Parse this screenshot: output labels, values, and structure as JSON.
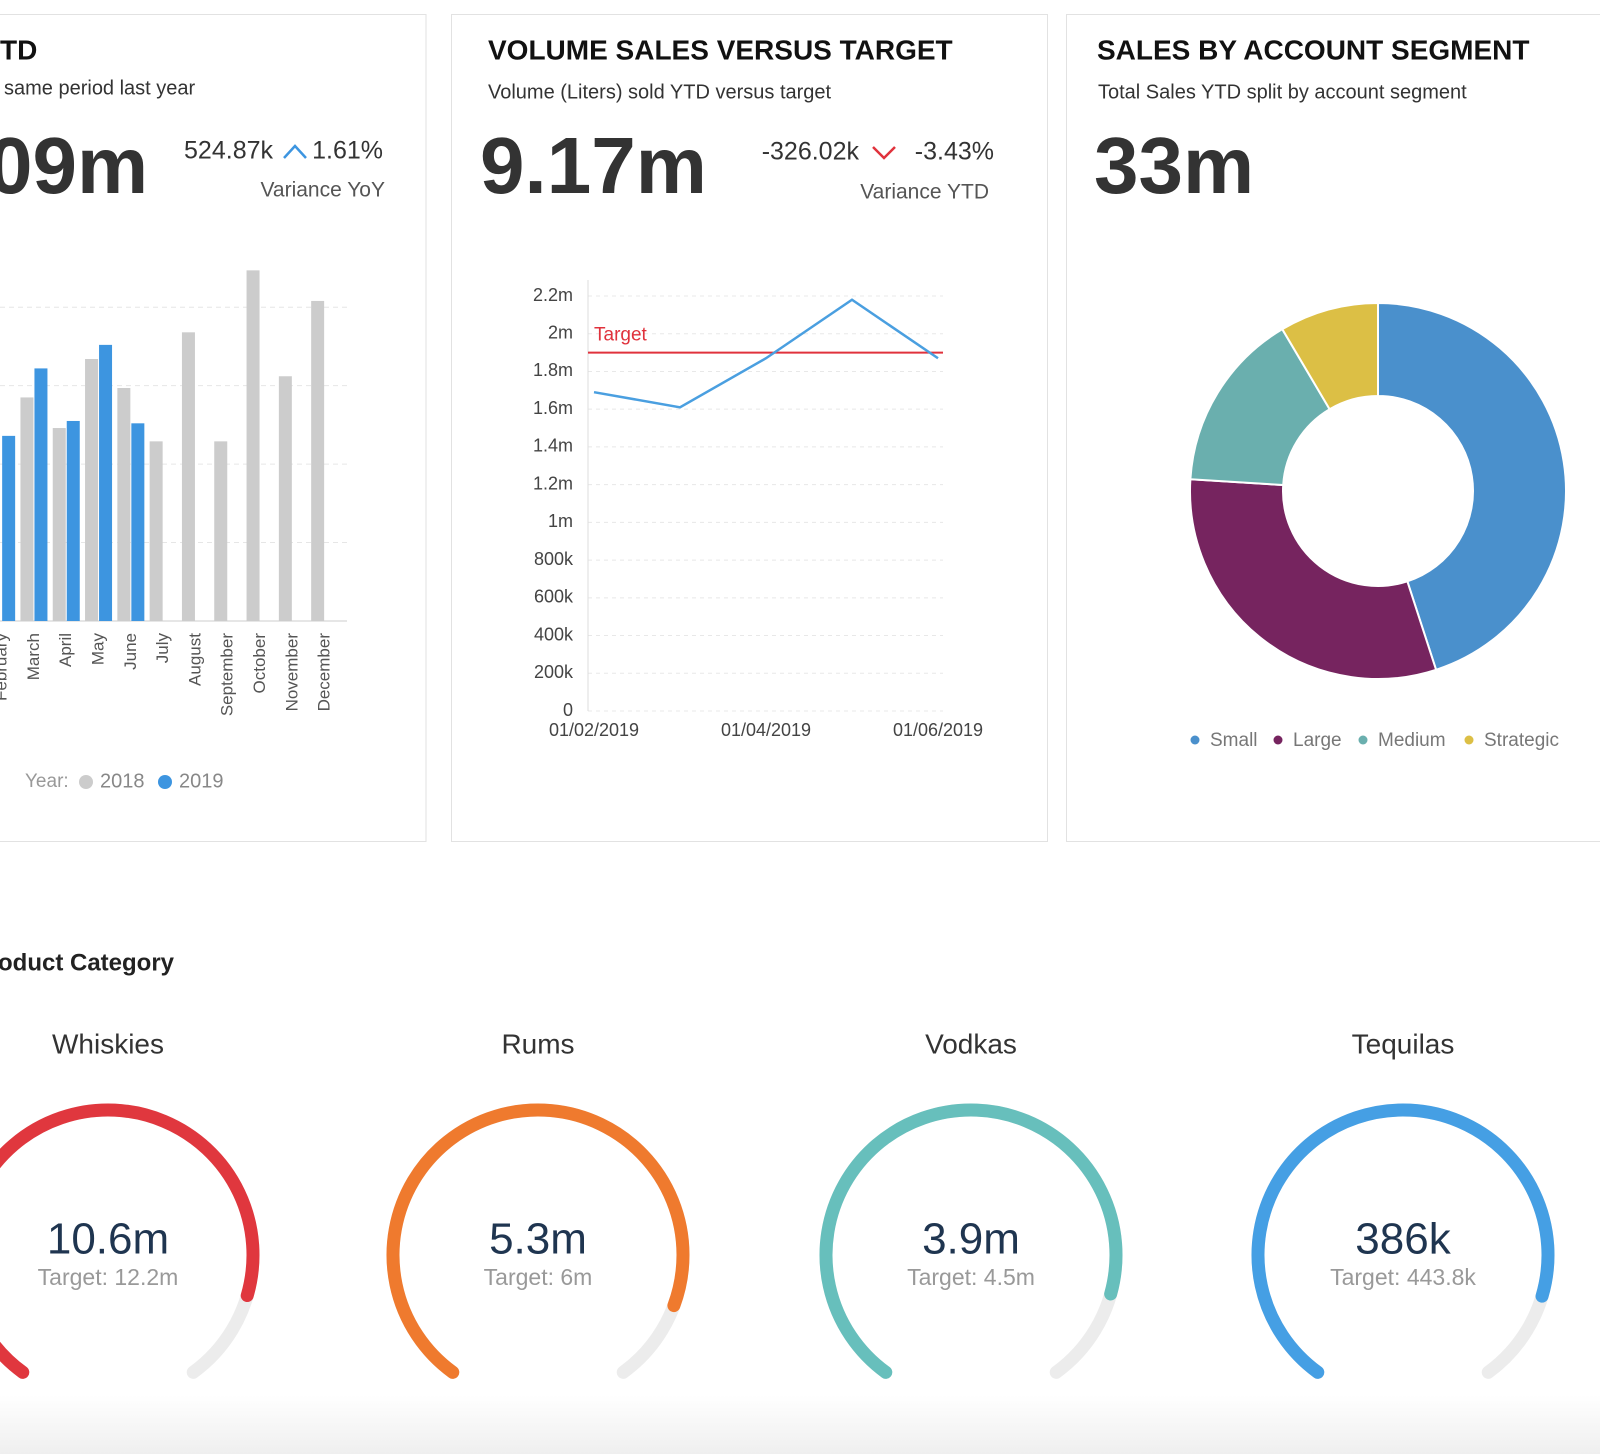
{
  "cards": [
    {
      "title": "TD",
      "subtitle": "same period last year",
      "kpi": "09m",
      "variance": "524.87k",
      "variance_pct": "1.61%",
      "variance_label": "Variance YoY"
    },
    {
      "title": "VOLUME SALES VERSUS TARGET",
      "subtitle": "Volume (Liters) sold YTD versus target",
      "kpi": "9.17m",
      "variance": "-326.02k",
      "variance_pct": "-3.43%",
      "variance_label": "Variance YTD"
    },
    {
      "title": "SALES BY ACCOUNT SEGMENT",
      "subtitle": "Total Sales YTD split by account segment",
      "kpi": "33m"
    }
  ],
  "section_title": "oduct Category",
  "chart_data": [
    {
      "type": "bar",
      "categories": [
        "February",
        "March",
        "April",
        "May",
        "June",
        "July",
        "August",
        "September",
        "October",
        "November",
        "December"
      ],
      "legend_title": "Year:",
      "series": [
        {
          "name": "2018",
          "color": "#cccccc",
          "values": [
            null,
            2.85,
            2.46,
            3.34,
            2.97,
            2.29,
            3.68,
            2.29,
            4.47,
            3.12,
            4.08
          ]
        },
        {
          "name": "2019",
          "color": "#3d95e0",
          "values": [
            2.36,
            3.22,
            2.55,
            3.52,
            2.52,
            null,
            null,
            null,
            null,
            null,
            null
          ]
        }
      ],
      "ylim": [
        0,
        4.5
      ],
      "yticks": [
        1,
        2,
        3,
        4
      ],
      "grid": true
    },
    {
      "type": "line",
      "categories": [
        "01/02/2019",
        null,
        "01/04/2019",
        null,
        "01/06/2019"
      ],
      "series": [
        {
          "name": "Volume",
          "color": "#4a9fe0",
          "values": [
            1690000,
            1610000,
            1870000,
            2180000,
            1870000
          ]
        }
      ],
      "target": {
        "label": "Target",
        "value": 1900000,
        "color": "#e0323c"
      },
      "ylim": [
        0,
        2200000
      ],
      "yticks": [
        0,
        {
          "value": 200000,
          "label": "200k"
        },
        {
          "value": 400000,
          "label": "400k"
        },
        {
          "value": 600000,
          "label": "600k"
        },
        {
          "value": 800000,
          "label": "800k"
        },
        {
          "value": 1000000,
          "label": "1m"
        },
        {
          "value": 1200000,
          "label": "1.2m"
        },
        {
          "value": 1400000,
          "label": "1.4m"
        },
        {
          "value": 1600000,
          "label": "1.6m"
        },
        {
          "value": 1800000,
          "label": "1.8m"
        },
        {
          "value": 2000000,
          "label": "2m"
        },
        {
          "value": 2200000,
          "label": "2.2m"
        }
      ],
      "grid": true
    },
    {
      "type": "pie",
      "categories": [
        "Small",
        "Large",
        "Medium",
        "Strategic"
      ],
      "values": [
        45,
        31,
        15.5,
        8.5
      ],
      "colors": [
        "#4a90cc",
        "#76245f",
        "#6aafae",
        "#dcbf45"
      ]
    },
    {
      "type": "gauge",
      "title": "Whiskies",
      "value": 10600000,
      "value_label": "10.6m",
      "target": 12200000,
      "target_label": "Target: 12.2m",
      "color": "#e0373e"
    },
    {
      "type": "gauge",
      "title": "Rums",
      "value": 5300000,
      "value_label": "5.3m",
      "target": 6000000,
      "target_label": "Target: 6m",
      "color": "#ef7a2e"
    },
    {
      "type": "gauge",
      "title": "Vodkas",
      "value": 3900000,
      "value_label": "3.9m",
      "target": 4500000,
      "target_label": "Target: 4.5m",
      "color": "#67bfbc"
    },
    {
      "type": "gauge",
      "title": "Tequilas",
      "value": 386000,
      "value_label": "386k",
      "target": 443800,
      "target_label": "Target: 443.8k",
      "color": "#459fe4"
    }
  ]
}
